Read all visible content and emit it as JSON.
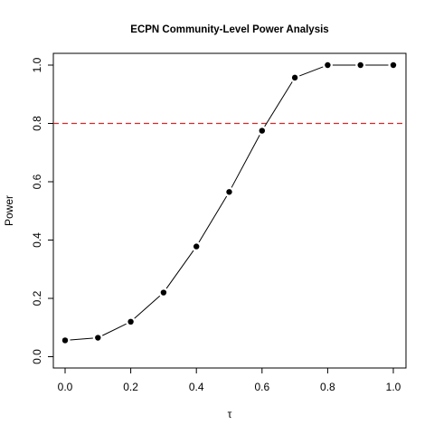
{
  "chart_data": {
    "type": "line",
    "title": "ECPN Community-Level Power Analysis",
    "xlabel": "τ",
    "ylabel": "Power",
    "xlim": [
      0.0,
      1.0
    ],
    "ylim": [
      0.0,
      1.0
    ],
    "x_ticks": [
      "0.0",
      "0.2",
      "0.4",
      "0.6",
      "0.8",
      "1.0"
    ],
    "y_ticks": [
      "0.0",
      "0.2",
      "0.4",
      "0.6",
      "0.8",
      "1.0"
    ],
    "x": [
      0.0,
      0.1,
      0.2,
      0.3,
      0.4,
      0.5,
      0.6,
      0.7,
      0.8,
      0.9,
      1.0
    ],
    "series": [
      {
        "values": [
          0.056,
          0.065,
          0.12,
          0.22,
          0.378,
          0.565,
          0.775,
          0.957,
          1.0,
          1.0,
          1.0
        ]
      }
    ],
    "reference_line": {
      "y": 0.8,
      "style": "dashed",
      "color": "#d62728"
    },
    "grid": false,
    "legend": "none",
    "colors": {
      "series": "#000000",
      "reference": "#d62728"
    }
  }
}
